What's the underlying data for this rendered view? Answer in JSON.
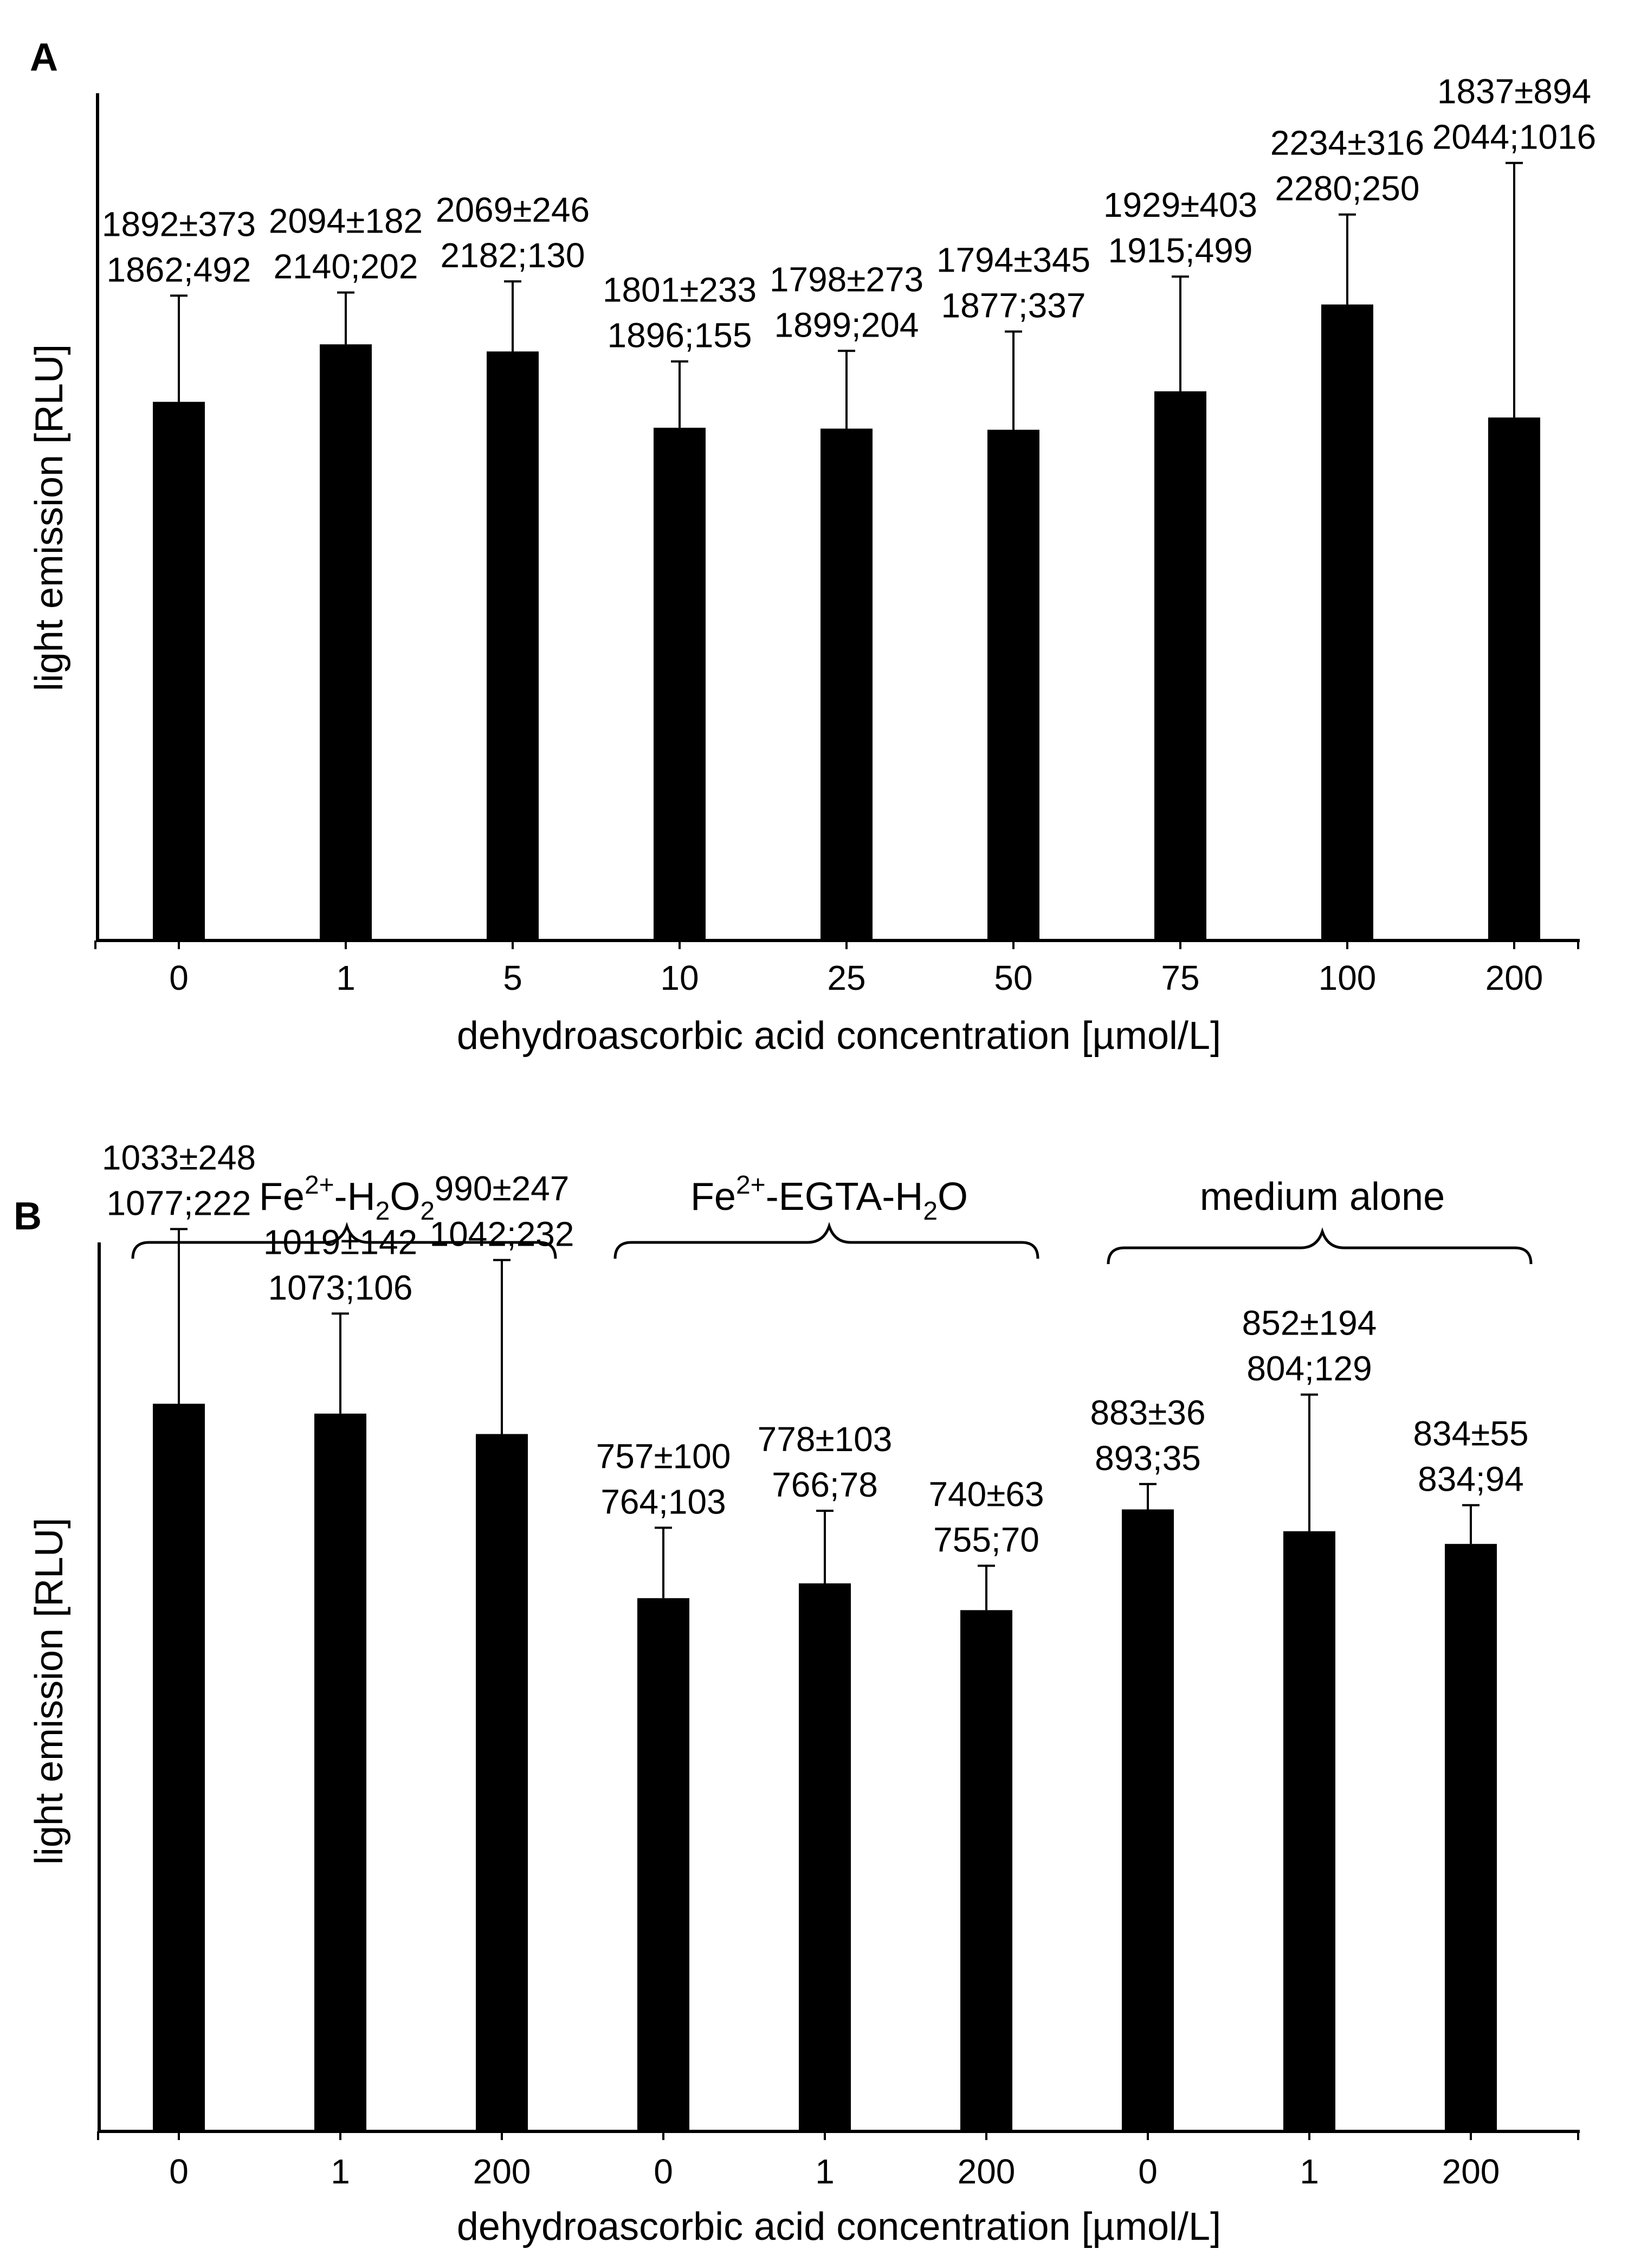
{
  "chart_data": [
    {
      "panel": "A",
      "type": "bar",
      "xlabel": "dehydroascorbic acid concentration [µmol/L]",
      "ylabel": "light emission [RLU]",
      "ylim": [
        0,
        2600
      ],
      "grid": false,
      "categories": [
        "0",
        "1",
        "5",
        "10",
        "25",
        "50",
        "75",
        "100",
        "200"
      ],
      "values": [
        1892,
        2094,
        2069,
        1801,
        1798,
        1794,
        1929,
        2234,
        1837
      ],
      "errors": [
        373,
        182,
        246,
        233,
        273,
        345,
        403,
        316,
        894
      ],
      "labels_mean_sd": [
        "1892±373",
        "2094±182",
        "2069±246",
        "1801±233",
        "1798±273",
        "1794±345",
        "1929±403",
        "2234±316",
        "1837±894"
      ],
      "labels_median_iqr": [
        "1862;492",
        "2140;202",
        "2182;130",
        "1896;155",
        "1899;204",
        "1877;337",
        "1915;499",
        "2280;250",
        "2044;1016"
      ]
    },
    {
      "panel": "B",
      "type": "bar",
      "xlabel": "dehydroascorbic acid concentration [µmol/L]",
      "ylabel": "light emission [RLU]",
      "ylim": [
        0,
        1350
      ],
      "grid": false,
      "categories": [
        "0",
        "1",
        "200",
        "0",
        "1",
        "200",
        "0",
        "1",
        "200"
      ],
      "values": [
        1033,
        1019,
        990,
        757,
        778,
        740,
        883,
        852,
        834
      ],
      "errors": [
        248,
        142,
        247,
        100,
        103,
        63,
        36,
        194,
        55
      ],
      "labels_mean_sd": [
        "1033±248",
        "1019±142",
        "990±247",
        "757±100",
        "778±103",
        "740±63",
        "883±36",
        "852±194",
        "834±55"
      ],
      "labels_median_iqr": [
        "1077;222",
        "1073;106",
        "1042;232",
        "764;103",
        "766;78",
        "755;70",
        "893;35",
        "804;129",
        "834;94"
      ],
      "groups": [
        {
          "label_main": "Fe",
          "sup": "2+",
          "mid": "-H",
          "sub1": "2",
          "mid2": "O",
          "sub2": "2"
        },
        {
          "label_main": "Fe",
          "sup": "2+",
          "mid": "-EGTA-H",
          "sub1": "2",
          "mid2": "O",
          "sub2": ""
        },
        {
          "label_plain": "medium alone"
        }
      ]
    }
  ]
}
